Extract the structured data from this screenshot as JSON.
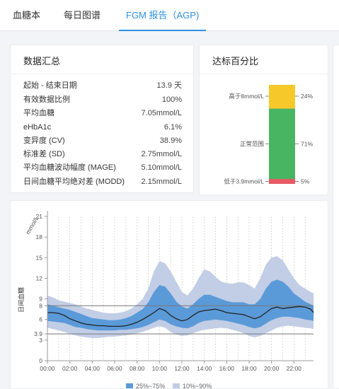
{
  "tabs": [
    {
      "label": "血糖本",
      "active": false
    },
    {
      "label": "每日图谱",
      "active": false
    },
    {
      "label": "FGM 报告（AGP)",
      "active": true
    }
  ],
  "summary": {
    "title": "数据汇总",
    "rows": [
      {
        "label": "起始 - 结束日期",
        "value": "13.9 天"
      },
      {
        "label": "有效数据比例",
        "value": "100%"
      },
      {
        "label": "平均血糖",
        "value": "7.05mmol/L"
      },
      {
        "label": "eHbA1c",
        "value": "6.1%"
      },
      {
        "label": "变异度 (CV)",
        "value": "38.9%"
      },
      {
        "label": "标准差 (SD)",
        "value": "2.75mmol/L"
      },
      {
        "label": "平均血糖波动幅度 (MAGE)",
        "value": "5.10mmol/L"
      },
      {
        "label": "日间血糖平均绝对差 (MODD)",
        "value": "2.15mmol/L"
      }
    ]
  },
  "target": {
    "title": "达标百分比",
    "segments": [
      {
        "label": "高于8mmol/L",
        "pct_text": "24%",
        "value": 24,
        "color": "#f7c829"
      },
      {
        "label": "正常范围",
        "pct_text": "71%",
        "value": 71,
        "color": "#47b562"
      },
      {
        "label": "低于3.9mmol/L",
        "pct_text": "5%",
        "value": 5,
        "color": "#e85a64"
      }
    ]
  },
  "chart_data": {
    "type": "area",
    "ylabel": "日间血糖",
    "yunit": "mmol/L",
    "ylim": [
      0,
      21
    ],
    "yticks": [
      0,
      3,
      3.9,
      6,
      8,
      9,
      12,
      15,
      18,
      21
    ],
    "xlim": [
      0,
      23.75
    ],
    "xticks": [
      "00:00",
      "02:00",
      "04:00",
      "06:00",
      "08:00",
      "10:00",
      "12:00",
      "14:00",
      "16:00",
      "18:00",
      "20:00",
      "22:00"
    ],
    "target_lines": [
      3.9,
      8
    ],
    "x": [
      0,
      0.5,
      1,
      1.5,
      2,
      2.5,
      3,
      3.5,
      4,
      4.5,
      5,
      5.5,
      6,
      6.5,
      7,
      7.5,
      8,
      8.5,
      9,
      9.5,
      10,
      10.5,
      11,
      11.5,
      12,
      12.5,
      13,
      13.5,
      14,
      14.5,
      15,
      15.5,
      16,
      16.5,
      17,
      17.5,
      18,
      18.5,
      19,
      19.5,
      20,
      20.5,
      21,
      21.5,
      22,
      22.5,
      23,
      23.5,
      23.75
    ],
    "series": [
      {
        "name": "10%~90%",
        "color": "#c2cde6",
        "lower": [
          4.8,
          4.6,
          4.4,
          4.2,
          3.9,
          3.7,
          3.5,
          3.4,
          3.3,
          3.3,
          3.4,
          3.5,
          3.5,
          3.6,
          3.7,
          3.8,
          4.0,
          4.2,
          4.5,
          4.8,
          5.0,
          4.8,
          4.2,
          3.8,
          3.6,
          3.7,
          4.0,
          4.3,
          4.5,
          4.6,
          4.7,
          4.8,
          4.7,
          4.5,
          4.3,
          4.0,
          3.6,
          3.4,
          3.6,
          4.0,
          4.4,
          4.8,
          5.0,
          5.1,
          5.0,
          4.9,
          4.8,
          4.7,
          4.6
        ],
        "upper": [
          9.5,
          9.2,
          8.8,
          8.6,
          8.4,
          8.2,
          7.9,
          7.6,
          7.4,
          7.2,
          7.0,
          6.9,
          6.9,
          7.0,
          7.2,
          7.6,
          8.2,
          9.0,
          10.5,
          13.0,
          14.5,
          14.2,
          13.0,
          11.5,
          10.0,
          9.5,
          10.5,
          12.0,
          13.3,
          13.0,
          12.2,
          11.5,
          11.3,
          11.2,
          11.4,
          11.4,
          11.0,
          10.5,
          12.0,
          14.0,
          15.0,
          15.2,
          14.6,
          13.3,
          12.0,
          11.0,
          10.5,
          10.0,
          9.8
        ]
      },
      {
        "name": "25%~75%",
        "color": "#5b9ad8",
        "lower": [
          5.8,
          5.7,
          5.6,
          5.5,
          5.2,
          4.9,
          4.8,
          4.6,
          4.5,
          4.4,
          4.4,
          4.4,
          4.4,
          4.5,
          4.5,
          4.6,
          4.7,
          4.9,
          5.2,
          5.6,
          6.0,
          5.8,
          5.3,
          5.0,
          4.8,
          4.7,
          5.0,
          5.5,
          5.8,
          5.9,
          6.0,
          5.9,
          5.8,
          5.6,
          5.4,
          5.2,
          4.9,
          4.7,
          4.9,
          5.4,
          5.9,
          6.2,
          6.4,
          6.4,
          6.3,
          6.2,
          6.0,
          5.9,
          5.8
        ],
        "upper": [
          8.2,
          8.0,
          7.8,
          7.6,
          7.4,
          7.1,
          6.8,
          6.5,
          6.2,
          6.1,
          6.0,
          5.9,
          5.9,
          6.0,
          6.2,
          6.5,
          7.0,
          7.5,
          8.5,
          10.0,
          11.0,
          10.8,
          9.8,
          8.6,
          7.9,
          7.6,
          8.2,
          9.0,
          9.6,
          9.6,
          9.3,
          9.0,
          8.7,
          8.5,
          8.5,
          8.5,
          8.2,
          8.2,
          9.0,
          10.5,
          11.5,
          11.8,
          11.5,
          10.8,
          9.8,
          9.2,
          8.6,
          8.2,
          8.0
        ]
      },
      {
        "name": "median",
        "color": "#222222",
        "values": [
          7.0,
          7.0,
          6.9,
          6.6,
          6.1,
          5.8,
          5.5,
          5.3,
          5.2,
          5.1,
          5.1,
          5.0,
          5.0,
          5.0,
          5.1,
          5.3,
          5.6,
          6.0,
          6.5,
          7.0,
          7.6,
          7.3,
          6.6,
          6.1,
          5.8,
          6.0,
          6.6,
          7.1,
          7.3,
          7.4,
          7.5,
          7.3,
          7.0,
          6.9,
          6.8,
          6.7,
          6.4,
          6.1,
          6.4,
          7.0,
          7.6,
          7.8,
          7.6,
          7.7,
          7.8,
          7.9,
          7.8,
          7.5,
          7.0
        ]
      }
    ],
    "legend": [
      {
        "label": "25%~75%",
        "color": "#5b9ad8"
      },
      {
        "label": "10%~90%",
        "color": "#c2cde6"
      }
    ]
  }
}
